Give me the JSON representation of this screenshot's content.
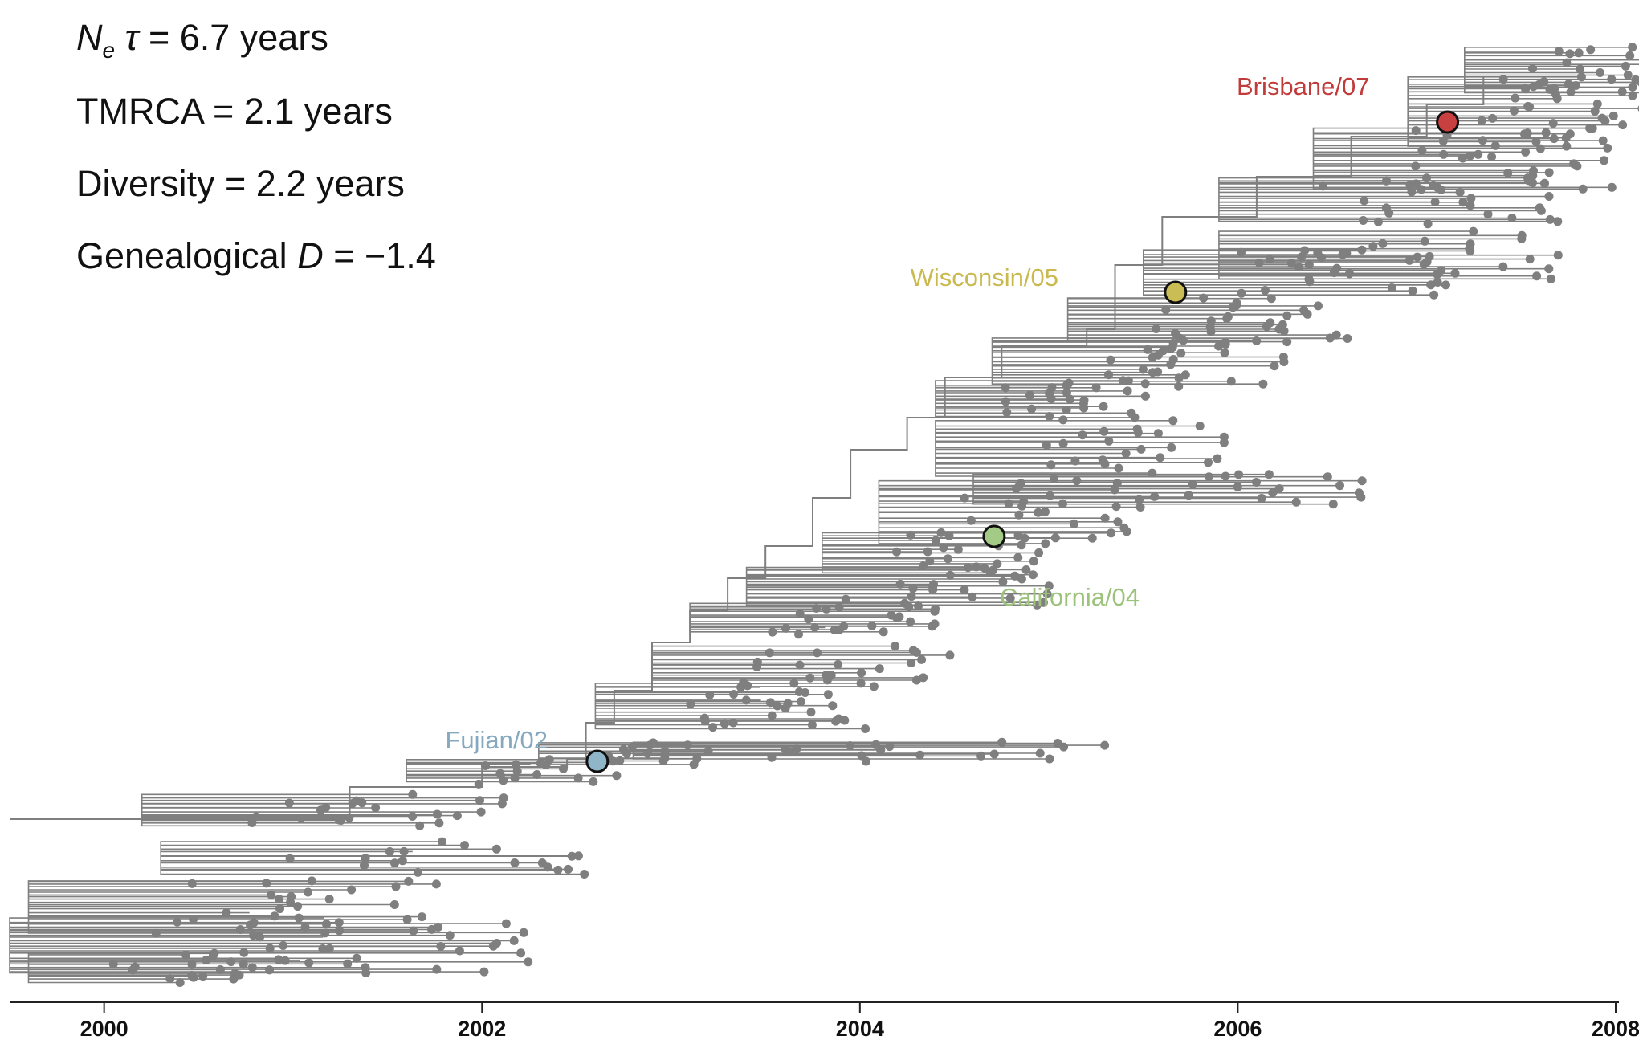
{
  "stats": {
    "ne_symbol": "N",
    "ne_subscript": "e",
    "tau_symbol": "τ",
    "ne_rest": " = 6.7 years",
    "tmrca": "TMRCA = 2.1 years",
    "diversity": "Diversity = 2.2 years",
    "d_prefix": "Genealogical ",
    "d_symbol": "D",
    "d_rest": " = −1.4"
  },
  "chart_data": {
    "type": "phylogenetic-tree",
    "x_axis": {
      "ticks": [
        "2000",
        "2002",
        "2004",
        "2006",
        "2008"
      ],
      "range": [
        1999.5,
        2008.0
      ]
    },
    "branch_color": "#7f7f7f",
    "tip_color": "#7f7f7f",
    "highlighted_strains": [
      {
        "name": "Brisbane/07",
        "date": 2007.11,
        "label_color": "#c23b3b",
        "marker_color": "#c8403f"
      },
      {
        "name": "Wisconsin/05",
        "date": 2005.67,
        "label_color": "#c9b94e",
        "marker_color": "#cabd56"
      },
      {
        "name": "California/04",
        "date": 2004.71,
        "label_color": "#9cc27b",
        "marker_color": "#a3cb86"
      },
      {
        "name": "Fujian/02",
        "date": 2002.61,
        "label_color": "#86a9bf",
        "marker_color": "#8fb5c9"
      }
    ]
  }
}
